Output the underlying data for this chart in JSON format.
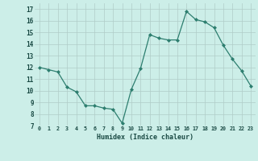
{
  "x": [
    0,
    1,
    2,
    3,
    4,
    5,
    6,
    7,
    8,
    9,
    10,
    11,
    12,
    13,
    14,
    15,
    16,
    17,
    18,
    19,
    20,
    21,
    22,
    23
  ],
  "y": [
    12.0,
    11.8,
    11.6,
    10.3,
    9.9,
    8.7,
    8.7,
    8.5,
    8.4,
    7.2,
    10.1,
    11.9,
    14.8,
    14.5,
    14.35,
    14.35,
    16.8,
    16.1,
    15.9,
    15.4,
    13.9,
    12.7,
    11.7,
    10.4
  ],
  "xlim": [
    -0.5,
    23.5
  ],
  "ylim": [
    7,
    17.5
  ],
  "yticks": [
    7,
    8,
    9,
    10,
    11,
    12,
    13,
    14,
    15,
    16,
    17
  ],
  "xticks": [
    0,
    1,
    2,
    3,
    4,
    5,
    6,
    7,
    8,
    9,
    10,
    11,
    12,
    13,
    14,
    15,
    16,
    17,
    18,
    19,
    20,
    21,
    22,
    23
  ],
  "xlabel": "Humidex (Indice chaleur)",
  "line_color": "#2d7e6f",
  "marker_color": "#2d7e6f",
  "bg_color": "#cceee8",
  "grid_color": "#b0ccc8",
  "font_color": "#1a4a44"
}
